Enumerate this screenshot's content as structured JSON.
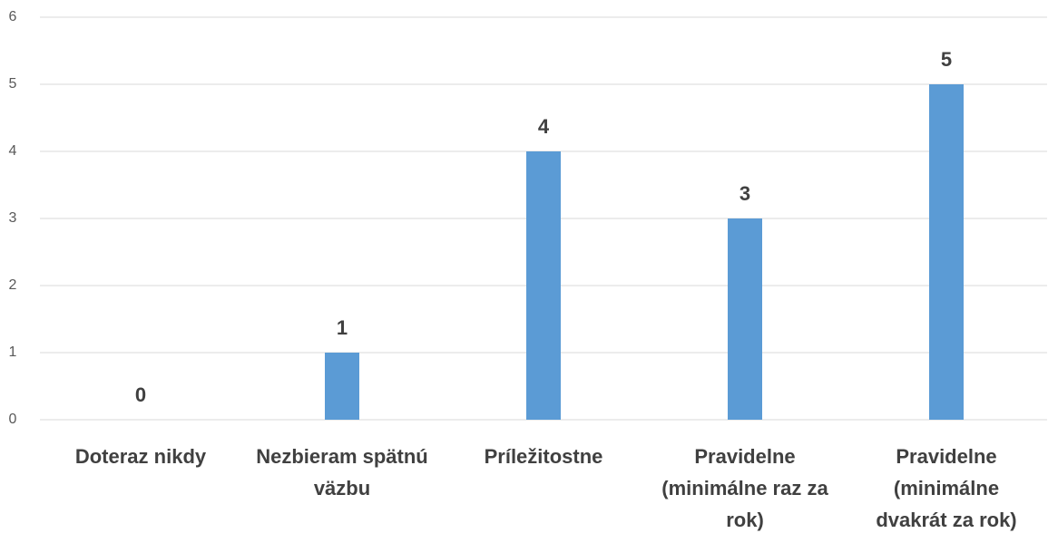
{
  "chart_data": {
    "type": "bar",
    "categories": [
      "Doteraz nikdy",
      "Nezbieram spätnú väzbu",
      "Príležitostne",
      "Pravidelne (minimálne raz za rok)",
      "Pravidelne (minimálne dvakrát za rok)"
    ],
    "values": [
      0,
      1,
      4,
      3,
      5
    ],
    "color": "#5b9bd5",
    "ylim": [
      0,
      6
    ],
    "yticks": [
      0,
      1,
      2,
      3,
      4,
      5,
      6
    ],
    "grid": true
  }
}
